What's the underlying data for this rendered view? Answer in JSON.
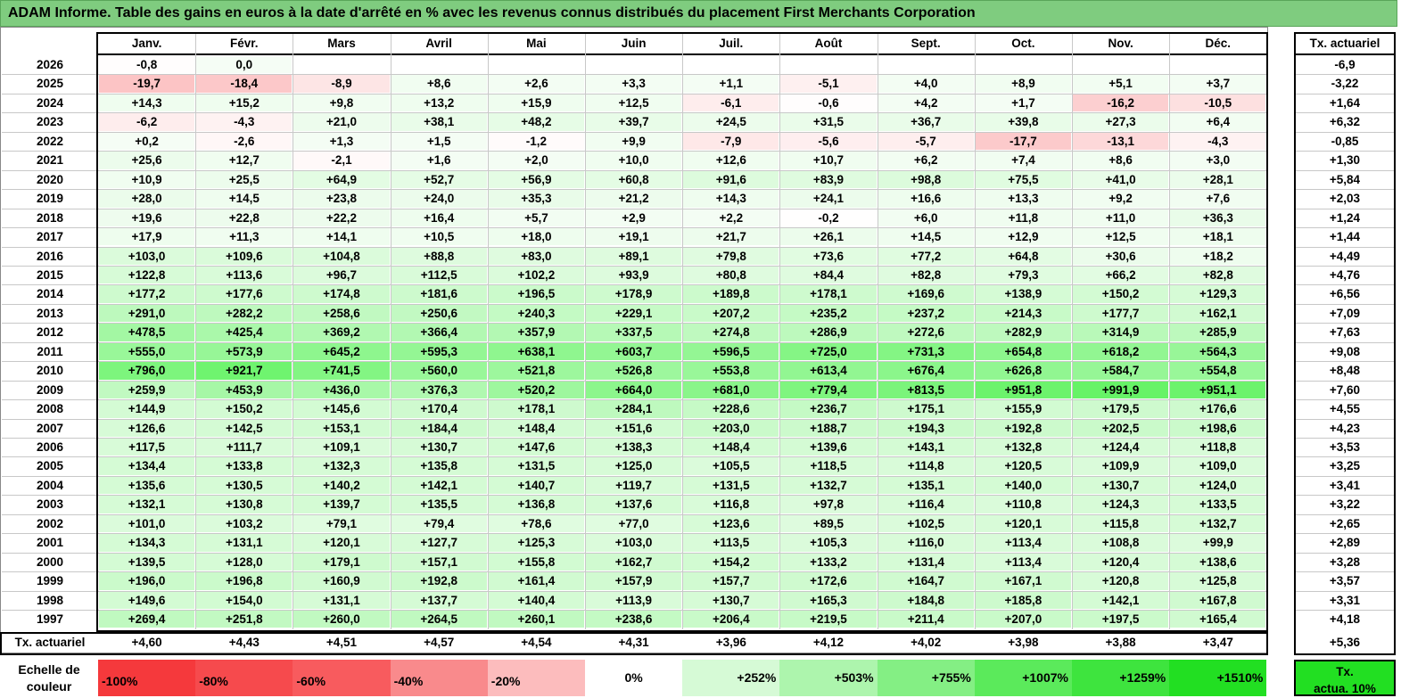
{
  "title": "ADAM Informe. Table des gains en euros à la date d'arrêté en % avec les revenus connus distribués du placement First Merchants Corporation",
  "chart_data": {
    "type": "heatmap",
    "months": [
      "Janv.",
      "Févr.",
      "Mars",
      "Avril",
      "Mai",
      "Juin",
      "Juil.",
      "Août",
      "Sept.",
      "Oct.",
      "Nov.",
      "Déc."
    ],
    "actuarial_header": "Tx. actuariel",
    "rows": [
      {
        "year": "2026",
        "values": [
          "-0,8",
          "0,0",
          "",
          "",
          "",
          "",
          "",
          "",
          "",
          "",
          "",
          ""
        ],
        "rate": "-6,9"
      },
      {
        "year": "2025",
        "values": [
          "-19,7",
          "-18,4",
          "-8,9",
          "+8,6",
          "+2,6",
          "+3,3",
          "+1,1",
          "-5,1",
          "+4,0",
          "+8,9",
          "+5,1",
          "+3,7"
        ],
        "rate": "-3,22"
      },
      {
        "year": "2024",
        "values": [
          "+14,3",
          "+15,2",
          "+9,8",
          "+13,2",
          "+15,9",
          "+12,5",
          "-6,1",
          "-0,6",
          "+4,2",
          "+1,7",
          "-16,2",
          "-10,5"
        ],
        "rate": "+1,64"
      },
      {
        "year": "2023",
        "values": [
          "-6,2",
          "-4,3",
          "+21,0",
          "+38,1",
          "+48,2",
          "+39,7",
          "+24,5",
          "+31,5",
          "+36,7",
          "+39,8",
          "+27,3",
          "+6,4"
        ],
        "rate": "+6,32"
      },
      {
        "year": "2022",
        "values": [
          "+0,2",
          "-2,6",
          "+1,3",
          "+1,5",
          "-1,2",
          "+9,9",
          "-7,9",
          "-5,6",
          "-5,7",
          "-17,7",
          "-13,1",
          "-4,3"
        ],
        "rate": "-0,85"
      },
      {
        "year": "2021",
        "values": [
          "+25,6",
          "+12,7",
          "-2,1",
          "+1,6",
          "+2,0",
          "+10,0",
          "+12,6",
          "+10,7",
          "+6,2",
          "+7,4",
          "+8,6",
          "+3,0"
        ],
        "rate": "+1,30"
      },
      {
        "year": "2020",
        "values": [
          "+10,9",
          "+25,5",
          "+64,9",
          "+52,7",
          "+56,9",
          "+60,8",
          "+91,6",
          "+83,9",
          "+98,8",
          "+75,5",
          "+41,0",
          "+28,1"
        ],
        "rate": "+5,84"
      },
      {
        "year": "2019",
        "values": [
          "+28,0",
          "+14,5",
          "+23,8",
          "+24,0",
          "+35,3",
          "+21,2",
          "+14,3",
          "+24,1",
          "+16,6",
          "+13,3",
          "+9,2",
          "+7,6"
        ],
        "rate": "+2,03"
      },
      {
        "year": "2018",
        "values": [
          "+19,6",
          "+22,8",
          "+22,2",
          "+16,4",
          "+5,7",
          "+2,9",
          "+2,2",
          "-0,2",
          "+6,0",
          "+11,8",
          "+11,0",
          "+36,3"
        ],
        "rate": "+1,24"
      },
      {
        "year": "2017",
        "values": [
          "+17,9",
          "+11,3",
          "+14,1",
          "+10,5",
          "+18,0",
          "+19,1",
          "+21,7",
          "+26,1",
          "+14,5",
          "+12,9",
          "+12,5",
          "+18,1"
        ],
        "rate": "+1,44"
      },
      {
        "year": "2016",
        "values": [
          "+103,0",
          "+109,6",
          "+104,8",
          "+88,8",
          "+83,0",
          "+89,1",
          "+79,8",
          "+73,6",
          "+77,2",
          "+64,8",
          "+30,6",
          "+18,2"
        ],
        "rate": "+4,49"
      },
      {
        "year": "2015",
        "values": [
          "+122,8",
          "+113,6",
          "+96,7",
          "+112,5",
          "+102,2",
          "+93,9",
          "+80,8",
          "+84,4",
          "+82,8",
          "+79,3",
          "+66,2",
          "+82,8"
        ],
        "rate": "+4,76"
      },
      {
        "year": "2014",
        "values": [
          "+177,2",
          "+177,6",
          "+174,8",
          "+181,6",
          "+196,5",
          "+178,9",
          "+189,8",
          "+178,1",
          "+169,6",
          "+138,9",
          "+150,2",
          "+129,3"
        ],
        "rate": "+6,56"
      },
      {
        "year": "2013",
        "values": [
          "+291,0",
          "+282,2",
          "+258,6",
          "+250,6",
          "+240,3",
          "+229,1",
          "+207,2",
          "+235,2",
          "+237,2",
          "+214,3",
          "+177,7",
          "+162,1"
        ],
        "rate": "+7,09"
      },
      {
        "year": "2012",
        "values": [
          "+478,5",
          "+425,4",
          "+369,2",
          "+366,4",
          "+357,9",
          "+337,5",
          "+274,8",
          "+286,9",
          "+272,6",
          "+282,9",
          "+314,9",
          "+285,9"
        ],
        "rate": "+7,63"
      },
      {
        "year": "2011",
        "values": [
          "+555,0",
          "+573,9",
          "+645,2",
          "+595,3",
          "+638,1",
          "+603,7",
          "+596,5",
          "+725,0",
          "+731,3",
          "+654,8",
          "+618,2",
          "+564,3"
        ],
        "rate": "+9,08"
      },
      {
        "year": "2010",
        "values": [
          "+796,0",
          "+921,7",
          "+741,5",
          "+560,0",
          "+521,8",
          "+526,8",
          "+553,8",
          "+613,4",
          "+676,4",
          "+626,8",
          "+584,7",
          "+554,8"
        ],
        "rate": "+8,48"
      },
      {
        "year": "2009",
        "values": [
          "+259,9",
          "+453,9",
          "+436,0",
          "+376,3",
          "+520,2",
          "+664,0",
          "+681,0",
          "+779,4",
          "+813,5",
          "+951,8",
          "+991,9",
          "+951,1"
        ],
        "rate": "+7,60"
      },
      {
        "year": "2008",
        "values": [
          "+144,9",
          "+150,2",
          "+145,6",
          "+170,4",
          "+178,1",
          "+284,1",
          "+228,6",
          "+236,7",
          "+175,1",
          "+155,9",
          "+179,5",
          "+176,6"
        ],
        "rate": "+4,55"
      },
      {
        "year": "2007",
        "values": [
          "+126,6",
          "+142,5",
          "+153,1",
          "+184,4",
          "+148,4",
          "+151,6",
          "+203,0",
          "+188,7",
          "+194,3",
          "+192,8",
          "+202,5",
          "+198,6"
        ],
        "rate": "+4,23"
      },
      {
        "year": "2006",
        "values": [
          "+117,5",
          "+111,7",
          "+109,1",
          "+130,7",
          "+147,6",
          "+138,3",
          "+148,4",
          "+139,6",
          "+143,1",
          "+132,8",
          "+124,4",
          "+118,8"
        ],
        "rate": "+3,53"
      },
      {
        "year": "2005",
        "values": [
          "+134,4",
          "+133,8",
          "+132,3",
          "+135,8",
          "+131,5",
          "+125,0",
          "+105,5",
          "+118,5",
          "+114,8",
          "+120,5",
          "+109,9",
          "+109,0"
        ],
        "rate": "+3,25"
      },
      {
        "year": "2004",
        "values": [
          "+135,6",
          "+130,5",
          "+140,2",
          "+142,1",
          "+140,7",
          "+119,7",
          "+131,5",
          "+132,7",
          "+135,1",
          "+140,0",
          "+130,7",
          "+124,0"
        ],
        "rate": "+3,41"
      },
      {
        "year": "2003",
        "values": [
          "+132,1",
          "+130,8",
          "+139,7",
          "+135,5",
          "+136,8",
          "+137,6",
          "+116,8",
          "+97,8",
          "+116,4",
          "+110,8",
          "+124,3",
          "+133,5"
        ],
        "rate": "+3,22"
      },
      {
        "year": "2002",
        "values": [
          "+101,0",
          "+103,2",
          "+79,1",
          "+79,4",
          "+78,6",
          "+77,0",
          "+123,6",
          "+89,5",
          "+102,5",
          "+120,1",
          "+115,8",
          "+132,7"
        ],
        "rate": "+2,65"
      },
      {
        "year": "2001",
        "values": [
          "+134,3",
          "+131,1",
          "+120,1",
          "+127,7",
          "+125,3",
          "+103,0",
          "+113,5",
          "+105,3",
          "+116,0",
          "+113,4",
          "+108,8",
          "+99,9"
        ],
        "rate": "+2,89"
      },
      {
        "year": "2000",
        "values": [
          "+139,5",
          "+128,0",
          "+179,1",
          "+157,1",
          "+155,8",
          "+162,7",
          "+154,2",
          "+133,2",
          "+131,4",
          "+113,4",
          "+120,4",
          "+138,6"
        ],
        "rate": "+3,28"
      },
      {
        "year": "1999",
        "values": [
          "+196,0",
          "+196,8",
          "+160,9",
          "+192,8",
          "+161,4",
          "+157,9",
          "+157,7",
          "+172,6",
          "+164,7",
          "+167,1",
          "+120,8",
          "+125,8"
        ],
        "rate": "+3,57"
      },
      {
        "year": "1998",
        "values": [
          "+149,6",
          "+154,0",
          "+131,1",
          "+137,7",
          "+140,4",
          "+113,9",
          "+130,7",
          "+165,3",
          "+184,8",
          "+185,8",
          "+142,1",
          "+167,8"
        ],
        "rate": "+3,31"
      },
      {
        "year": "1997",
        "values": [
          "+269,4",
          "+251,8",
          "+260,0",
          "+264,5",
          "+260,1",
          "+238,6",
          "+206,4",
          "+219,5",
          "+211,4",
          "+207,0",
          "+197,5",
          "+165,4"
        ],
        "rate": "+4,18"
      }
    ],
    "footer": {
      "label": "Tx. actuariel",
      "values": [
        "+4,60",
        "+4,43",
        "+4,51",
        "+4,57",
        "+4,54",
        "+4,31",
        "+3,96",
        "+4,12",
        "+4,02",
        "+3,98",
        "+3,88",
        "+3,47"
      ],
      "rate": "+5,36"
    },
    "scale": {
      "label_line1": "Echelle de",
      "label_line2": "couleur",
      "items": [
        {
          "label": "-100%",
          "color": "#f5393c"
        },
        {
          "label": "-80%",
          "color": "#f64a4d"
        },
        {
          "label": "-60%",
          "color": "#f85b5e"
        },
        {
          "label": "-40%",
          "color": "#f98a8c"
        },
        {
          "label": "-20%",
          "color": "#fcbcbd"
        },
        {
          "label": "0%",
          "color": "#ffffff"
        },
        {
          "label": "+252%",
          "color": "#d6fad6"
        },
        {
          "label": "+503%",
          "color": "#adf5ad"
        },
        {
          "label": "+755%",
          "color": "#84ef84"
        },
        {
          "label": "+1007%",
          "color": "#5bea5b"
        },
        {
          "label": "+1259%",
          "color": "#3ee43e"
        },
        {
          "label": "+1510%",
          "color": "#22df22"
        }
      ],
      "rate_label_line1": "Tx.",
      "rate_label_line2": "actua. 10%",
      "rate_color": "#22df22"
    }
  }
}
